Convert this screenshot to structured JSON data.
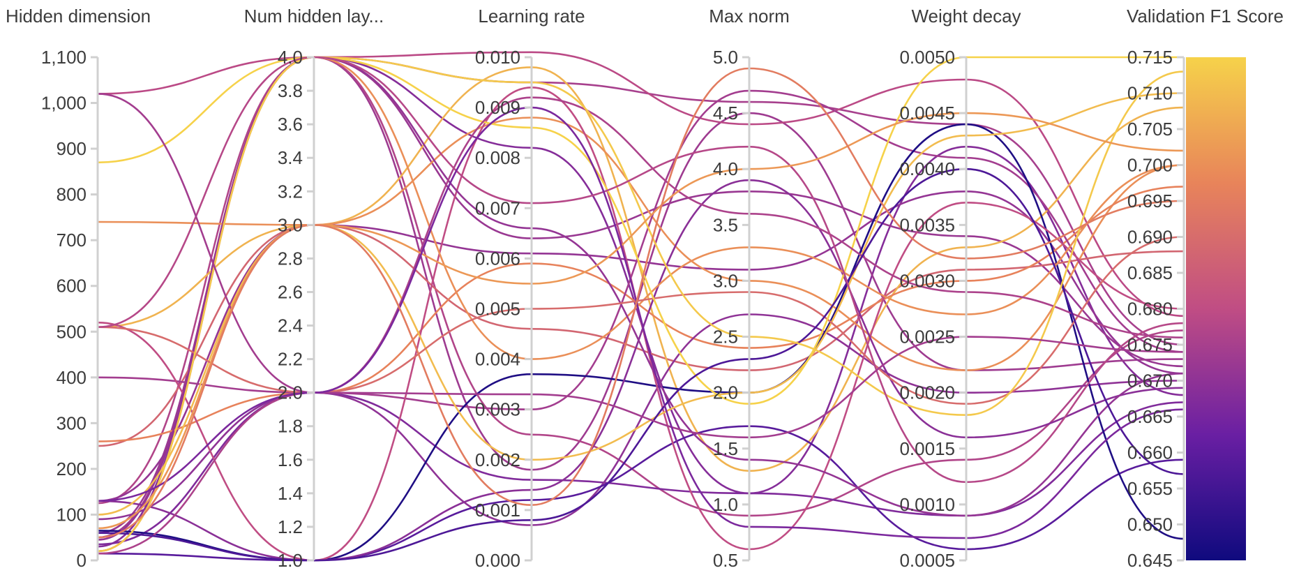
{
  "chart_data": {
    "type": "parallel_coordinates",
    "title": "",
    "axes": [
      {
        "name": "Hidden dimension",
        "range": [
          0,
          1100
        ],
        "ticks": [
          "0",
          "100",
          "200",
          "300",
          "400",
          "500",
          "600",
          "700",
          "800",
          "900",
          "1,000",
          "1,100"
        ],
        "tick_values": [
          0,
          100,
          200,
          300,
          400,
          500,
          600,
          700,
          800,
          900,
          1000,
          1100
        ]
      },
      {
        "name": "Num hidden lay...",
        "range": [
          1.0,
          4.0
        ],
        "ticks": [
          "1.0",
          "1.2",
          "1.4",
          "1.6",
          "1.8",
          "2.0",
          "2.2",
          "2.4",
          "2.6",
          "2.8",
          "3.0",
          "3.2",
          "3.4",
          "3.6",
          "3.8",
          "4.0"
        ],
        "tick_values": [
          1.0,
          1.2,
          1.4,
          1.6,
          1.8,
          2.0,
          2.2,
          2.4,
          2.6,
          2.8,
          3.0,
          3.2,
          3.4,
          3.6,
          3.8,
          4.0
        ]
      },
      {
        "name": "Learning rate",
        "range": [
          0.0,
          0.01
        ],
        "ticks": [
          "0.000",
          "0.001",
          "0.002",
          "0.003",
          "0.004",
          "0.005",
          "0.006",
          "0.007",
          "0.008",
          "0.009",
          "0.010"
        ],
        "tick_values": [
          0,
          0.001,
          0.002,
          0.003,
          0.004,
          0.005,
          0.006,
          0.007,
          0.008,
          0.009,
          0.01
        ]
      },
      {
        "name": "Max norm",
        "range": [
          0.5,
          5.0
        ],
        "ticks": [
          "0.5",
          "1.0",
          "1.5",
          "2.0",
          "2.5",
          "3.0",
          "3.5",
          "4.0",
          "4.5",
          "5.0"
        ],
        "tick_values": [
          0.5,
          1.0,
          1.5,
          2.0,
          2.5,
          3.0,
          3.5,
          4.0,
          4.5,
          5.0
        ]
      },
      {
        "name": "Weight decay",
        "range": [
          0.0005,
          0.005
        ],
        "ticks": [
          "0.0005",
          "0.0010",
          "0.0015",
          "0.0020",
          "0.0025",
          "0.0030",
          "0.0035",
          "0.0040",
          "0.0045",
          "0.0050"
        ],
        "tick_values": [
          0.0005,
          0.001,
          0.0015,
          0.002,
          0.0025,
          0.003,
          0.0035,
          0.004,
          0.0045,
          0.005
        ]
      },
      {
        "name": "Validation F1 Score",
        "range": [
          0.645,
          0.715
        ],
        "ticks": [
          "0.645",
          "0.650",
          "0.655",
          "0.660",
          "0.665",
          "0.670",
          "0.675",
          "0.680",
          "0.685",
          "0.690",
          "0.695",
          "0.700",
          "0.705",
          "0.710",
          "0.715"
        ],
        "tick_values": [
          0.645,
          0.65,
          0.655,
          0.66,
          0.665,
          0.67,
          0.675,
          0.68,
          0.685,
          0.69,
          0.695,
          0.7,
          0.705,
          0.71,
          0.715
        ]
      }
    ],
    "colorscale": {
      "name": "plasma",
      "stops": [
        "#0d0887",
        "#7e03a8",
        "#cc4778",
        "#f89540",
        "#f0f921"
      ],
      "display_stops": [
        "#0f0a7e",
        "#6a1fa3",
        "#c04d84",
        "#e8845a",
        "#f6d24a"
      ],
      "range": [
        0.645,
        0.715
      ]
    },
    "runs": [
      {
        "values": [
          20,
          4,
          0.0095,
          4.6,
          0.0044,
          0.675
        ]
      },
      {
        "values": [
          30,
          4,
          0.0082,
          1.1,
          0.0042,
          0.668
        ]
      },
      {
        "values": [
          60,
          4,
          0.0064,
          3.8,
          0.0034,
          0.672
        ]
      },
      {
        "values": [
          50,
          4,
          0.0018,
          4.5,
          0.0022,
          0.673
        ]
      },
      {
        "values": [
          1020,
          4,
          0.0101,
          4.4,
          0.0048,
          0.679
        ]
      },
      {
        "values": [
          125,
          4,
          0.0025,
          0.9,
          0.0014,
          0.677
        ]
      },
      {
        "values": [
          130,
          3,
          0.0061,
          3.1,
          0.0038,
          0.671
        ]
      },
      {
        "values": [
          250,
          3,
          0.0046,
          2.2,
          0.0031,
          0.688
        ]
      },
      {
        "values": [
          510,
          3,
          0.0098,
          1.3,
          0.0033,
          0.708
        ]
      },
      {
        "values": [
          740,
          3,
          0.0088,
          3.0,
          0.0022,
          0.7
        ]
      },
      {
        "values": [
          35,
          2,
          0.0016,
          1.1,
          0.0009,
          0.667
        ]
      },
      {
        "values": [
          260,
          2,
          0.0059,
          2.4,
          0.003,
          0.697
        ]
      },
      {
        "values": [
          400,
          2,
          0.003,
          4.7,
          0.0041,
          0.674
        ]
      },
      {
        "values": [
          90,
          2,
          0.0007,
          2.7,
          0.002,
          0.67
        ]
      },
      {
        "values": [
          15,
          1,
          0.0012,
          1.7,
          0.0006,
          0.659
        ]
      },
      {
        "values": [
          65,
          1,
          0.0037,
          2.0,
          0.0044,
          0.648
        ]
      },
      {
        "values": [
          520,
          1,
          0.0094,
          0.6,
          0.0037,
          0.68
        ]
      },
      {
        "values": [
          130,
          1,
          0.0014,
          3.9,
          0.0016,
          0.669
        ]
      },
      {
        "values": [
          20,
          4,
          0.004,
          3.3,
          0.0027,
          0.7
        ]
      },
      {
        "values": [
          45,
          4,
          0.0066,
          1.4,
          0.0009,
          0.671
        ]
      },
      {
        "values": [
          100,
          3,
          0.002,
          2.0,
          0.0043,
          0.71
        ]
      },
      {
        "values": [
          510,
          2,
          0.005,
          2.9,
          0.0019,
          0.69
        ]
      },
      {
        "values": [
          870,
          4,
          0.0086,
          1.9,
          0.005,
          0.715
        ]
      },
      {
        "values": [
          15,
          2,
          0.0092,
          3.6,
          0.0029,
          0.676
        ]
      },
      {
        "values": [
          60,
          1,
          0.0008,
          2.3,
          0.004,
          0.657
        ]
      },
      {
        "values": [
          20,
          4,
          0.0095,
          2.5,
          0.0018,
          0.713
        ]
      },
      {
        "values": [
          510,
          4,
          0.0071,
          4.2,
          0.0012,
          0.678
        ]
      },
      {
        "values": [
          1020,
          2,
          0.0033,
          1.6,
          0.0025,
          0.674
        ]
      },
      {
        "values": [
          70,
          3,
          0.0055,
          4.0,
          0.0045,
          0.702
        ]
      },
      {
        "values": [
          130,
          2,
          0.009,
          0.8,
          0.0007,
          0.666
        ]
      },
      {
        "values": [
          50,
          3,
          0.0011,
          4.9,
          0.0032,
          0.695
        ]
      }
    ]
  }
}
